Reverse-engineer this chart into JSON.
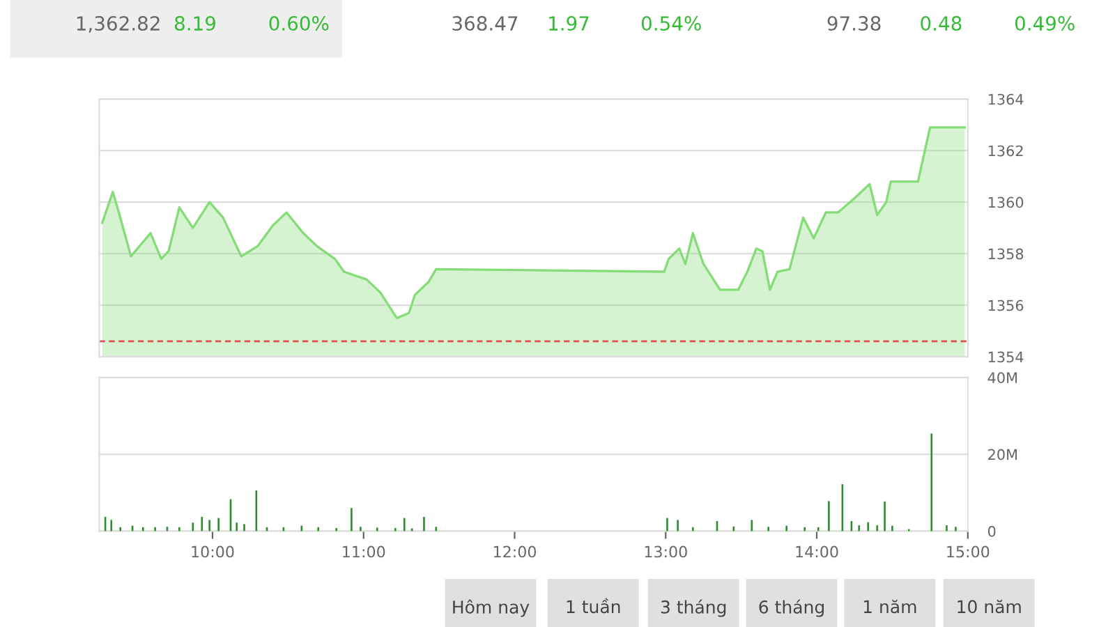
{
  "chart_data": [
    {
      "type": "area",
      "color": "#86dc78",
      "x": [
        9.27,
        9.34,
        9.38,
        9.46,
        9.59,
        9.66,
        9.71,
        9.78,
        9.87,
        9.98,
        10.07,
        10.19,
        10.3,
        10.4,
        10.49,
        10.6,
        10.69,
        10.81,
        10.87,
        11.02,
        11.11,
        11.22,
        11.3,
        11.34,
        11.43,
        11.48,
        12.99,
        13.02,
        13.09,
        13.13,
        13.18,
        13.25,
        13.36,
        13.48,
        13.54,
        13.6,
        13.64,
        13.69,
        13.74,
        13.82,
        13.91,
        13.98,
        14.06,
        14.14,
        14.24,
        14.35,
        14.4,
        14.46,
        14.49,
        14.67,
        14.75,
        14.98
      ],
      "values": [
        1359.2,
        1360.4,
        1359.6,
        1357.9,
        1358.8,
        1357.8,
        1358.1,
        1359.8,
        1359.0,
        1360.0,
        1359.4,
        1357.9,
        1358.3,
        1359.1,
        1359.6,
        1358.8,
        1358.3,
        1357.8,
        1357.3,
        1357.0,
        1356.5,
        1355.5,
        1355.7,
        1356.4,
        1356.9,
        1357.4,
        1357.3,
        1357.8,
        1358.2,
        1357.6,
        1358.8,
        1357.6,
        1356.6,
        1356.6,
        1357.3,
        1358.2,
        1358.1,
        1356.6,
        1357.3,
        1357.4,
        1359.4,
        1358.6,
        1359.6,
        1359.6,
        1360.1,
        1360.7,
        1359.5,
        1360.0,
        1360.8,
        1360.8,
        1362.9,
        1362.9
      ],
      "xlim": [
        9.25,
        15
      ],
      "ylim": [
        1354,
        1364
      ],
      "yticks": [
        1354,
        1356,
        1358,
        1360,
        1362,
        1364
      ],
      "grid": "y",
      "tick_labels": "y",
      "ref_lines": [
        {
          "axis": "y",
          "value": 1354.6,
          "color": "#e05050",
          "line_style": "dashed"
        }
      ],
      "annotations": [
        "1,362.82",
        "8.19",
        "0.60%",
        "368.47",
        "1.97",
        "0.54%",
        "97.38",
        "0.48",
        "0.49%",
        "Hôm nay",
        "1 tuần",
        "3 tháng",
        "6 tháng",
        "1 năm",
        "10 năm"
      ]
    },
    {
      "type": "bar",
      "color": "#2e8b2e",
      "x": [
        9.29,
        9.33,
        9.39,
        9.47,
        9.54,
        9.62,
        9.7,
        9.78,
        9.87,
        9.93,
        9.98,
        10.04,
        10.12,
        10.16,
        10.21,
        10.29,
        10.36,
        10.47,
        10.59,
        10.7,
        10.82,
        10.92,
        10.98,
        11.09,
        11.21,
        11.27,
        11.32,
        11.4,
        11.48,
        13.01,
        13.08,
        13.18,
        13.34,
        13.45,
        13.57,
        13.68,
        13.8,
        13.92,
        14.01,
        14.08,
        14.17,
        14.23,
        14.28,
        14.34,
        14.4,
        14.45,
        14.5,
        14.61,
        14.76,
        14.86,
        14.92
      ],
      "values": [
        3.7,
        2.9,
        1.0,
        1.4,
        1.0,
        1.0,
        1.1,
        1.0,
        2.2,
        3.7,
        2.9,
        3.4,
        8.3,
        2.2,
        1.8,
        10.6,
        1.0,
        1.0,
        1.4,
        1.0,
        0.8,
        6.0,
        1.1,
        0.9,
        0.8,
        3.4,
        0.7,
        3.7,
        1.1,
        3.4,
        2.9,
        1.0,
        2.6,
        1.2,
        2.9,
        1.1,
        1.4,
        1.0,
        1.0,
        7.8,
        12.2,
        2.6,
        1.5,
        2.3,
        1.5,
        7.7,
        1.4,
        0.5,
        25.4,
        1.5,
        1.1
      ],
      "xlim": [
        9.25,
        15
      ],
      "ylim": [
        0,
        40
      ],
      "yticks": [
        0,
        {
          "value": 20,
          "label": "20M"
        },
        {
          "value": 40,
          "label": "40M"
        }
      ],
      "xticks": [
        {
          "value": 10,
          "label": "10:00"
        },
        {
          "value": 11,
          "label": "11:00"
        },
        {
          "value": 12,
          "label": "12:00"
        },
        {
          "value": 13,
          "label": "13:00"
        },
        {
          "value": 14,
          "label": "14:00"
        },
        {
          "value": 15,
          "label": "15:00"
        }
      ],
      "grid": "y"
    }
  ]
}
